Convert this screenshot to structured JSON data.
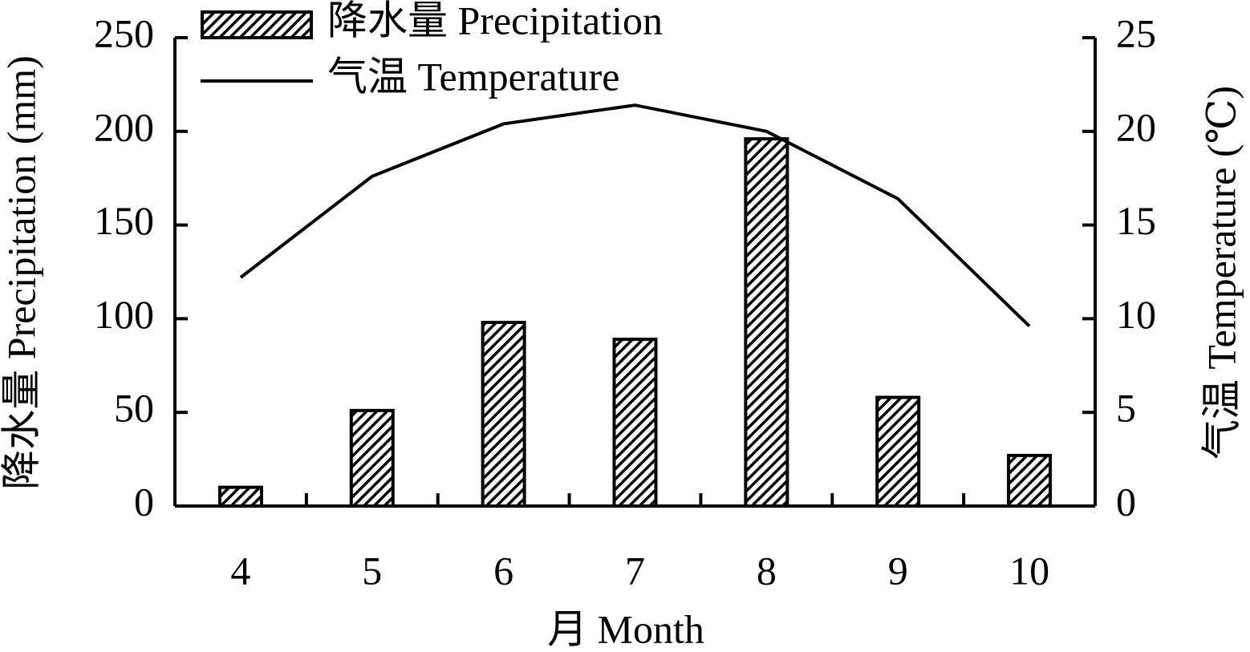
{
  "chart_data": {
    "type": "bar-line",
    "x_label": "月 Month",
    "y_label": "降水量 Precipitation (mm)",
    "y2_label": "气温 Temperature (℃)",
    "categories": [
      "4",
      "5",
      "6",
      "7",
      "8",
      "9",
      "10"
    ],
    "series": [
      {
        "name": "降水量 Precipitation",
        "type": "bar",
        "color": "#000000",
        "axis": "y",
        "values": [
          10,
          51,
          98,
          89,
          196,
          58,
          27
        ]
      },
      {
        "name": "气温 Temperature",
        "type": "line",
        "color": "#000000",
        "axis": "y2",
        "values": [
          12.2,
          17.6,
          20.4,
          21.4,
          20.0,
          16.4,
          9.6
        ]
      }
    ],
    "ylim": [
      0,
      250
    ],
    "yticks": [
      0,
      50,
      100,
      150,
      200,
      250
    ],
    "y2lim": [
      0,
      25
    ],
    "y2ticks": [
      0,
      5,
      10,
      15,
      20,
      25
    ],
    "legend": "top-left",
    "grid": false
  }
}
